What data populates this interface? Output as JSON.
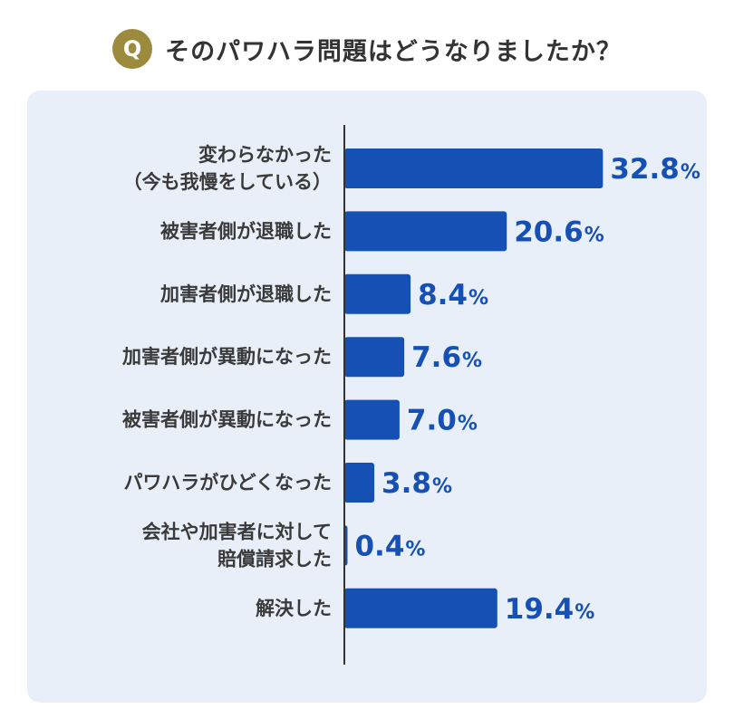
{
  "header": {
    "badge": "Q",
    "question": "そのパワハラ問題はどうなりましたか？"
  },
  "colors": {
    "bar": "#1550b4",
    "value_text": "#1650b4",
    "badge": "#9c8b3d",
    "panel": "#e8eff9"
  },
  "chart_data": {
    "type": "bar",
    "orientation": "horizontal",
    "unit": "%",
    "categories": [
      [
        "変わらなかった",
        "（今も我慢をしている）"
      ],
      [
        "被害者側が退職した"
      ],
      [
        "加害者側が退職した"
      ],
      [
        "加害者側が異動になった"
      ],
      [
        "被害者側が異動になった"
      ],
      [
        "パワハラがひどくなった"
      ],
      [
        "会社や加害者に対して",
        "賠償請求した"
      ],
      [
        "解決した"
      ]
    ],
    "values": [
      32.8,
      20.6,
      8.4,
      7.6,
      7.0,
      3.8,
      0.4,
      19.4
    ],
    "value_labels": [
      "32.8",
      "20.6",
      "8.4",
      "7.6",
      "7.0",
      "3.8",
      "0.4",
      "19.4"
    ],
    "grid": false,
    "legend": false
  }
}
